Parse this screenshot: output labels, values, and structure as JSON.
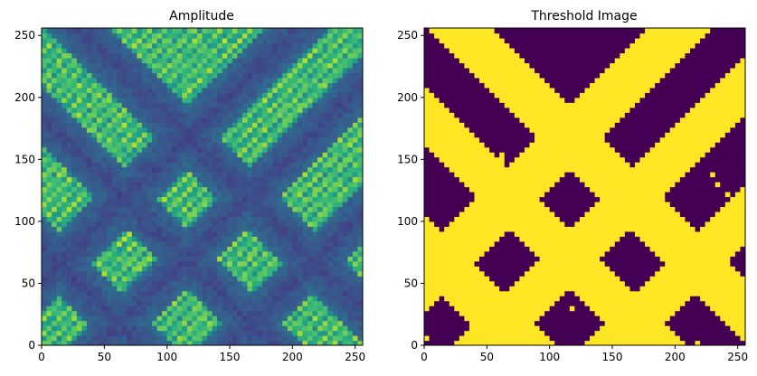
{
  "chart_data": [
    {
      "type": "heatmap",
      "title": "Amplitude",
      "xlim": [
        0,
        256
      ],
      "ylim": [
        0,
        256
      ],
      "xticks": [
        0,
        50,
        100,
        150,
        200,
        250
      ],
      "yticks": [
        0,
        50,
        100,
        150,
        200,
        250
      ],
      "colormap": "viridis",
      "features": {
        "bands": [
          {
            "direction": "down-right",
            "offset": 285,
            "width": 36
          },
          {
            "direction": "down-right",
            "offset": 185,
            "width": 34
          },
          {
            "direction": "down-right",
            "offset": 80,
            "width": 34
          },
          {
            "direction": "up-right",
            "offset": 52,
            "width": 36
          },
          {
            "direction": "up-right",
            "offset": -45,
            "width": 34
          },
          {
            "direction": "up-right",
            "offset": -150,
            "width": 34
          }
        ]
      }
    },
    {
      "type": "heatmap",
      "title": "Threshold Image",
      "xlim": [
        0,
        256
      ],
      "ylim": [
        0,
        256
      ],
      "xticks": [
        0,
        50,
        100,
        150,
        200,
        250
      ],
      "yticks": [
        0,
        50,
        100,
        150,
        200,
        250
      ],
      "colormap": "binary-viridis",
      "colors": {
        "low": "#440154",
        "high": "#fde725"
      }
    }
  ]
}
